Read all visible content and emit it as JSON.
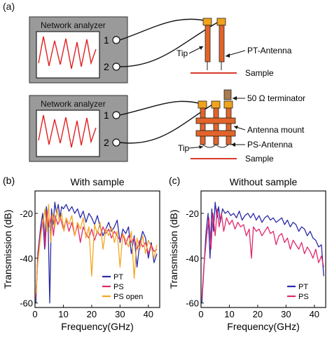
{
  "panel_a": {
    "label": "(a)",
    "analyzer_title": "Network analyzer",
    "port1": "1",
    "port2": "2",
    "top": {
      "tip": "Tip",
      "antenna": "PT-Antenna",
      "sample": "Sample"
    },
    "bottom": {
      "terminator": "50 Ω terminator",
      "mount": "Antenna mount",
      "antenna": "PS-Antenna",
      "tip": "Tip",
      "sample": "Sample"
    },
    "colors": {
      "box": "#9a9a9a",
      "trace": "#e02020",
      "antenna": "#e2642a",
      "tip_pad": "#f0a31c",
      "sample": "#d83a2a",
      "terminator": "#a97b4d"
    }
  },
  "chart_data": [
    {
      "type": "line",
      "panel_label": "(b)",
      "title": "With sample",
      "xlabel": "Frequency(GHz)",
      "ylabel": "Transmission (dB)",
      "xlim": [
        0,
        44
      ],
      "ylim": [
        -62,
        -10
      ],
      "xticks": [
        0,
        10,
        20,
        30,
        40
      ],
      "yticks": [
        -20,
        -40,
        -60
      ],
      "legend_position": "bottom-right",
      "series": [
        {
          "name": "PT",
          "color": "#2a2aa8",
          "x": [
            0.3,
            1,
            2,
            2.7,
            3.4,
            4,
            4.6,
            5.2,
            5.8,
            6.4,
            7,
            7.6,
            8.2,
            8.8,
            9.4,
            10,
            11,
            12,
            13,
            14,
            15,
            16,
            17,
            18,
            19,
            20,
            21,
            22,
            23,
            24,
            25,
            26,
            27,
            28,
            29,
            30,
            31,
            32,
            33,
            34,
            35,
            36,
            37,
            38,
            39,
            40,
            41,
            42,
            43
          ],
          "y": [
            -60,
            -38,
            -26,
            -20,
            -36,
            -17,
            -23,
            -60,
            -18,
            -25,
            -15,
            -20,
            -16,
            -22,
            -17,
            -18,
            -16,
            -19,
            -17,
            -20,
            -18,
            -22,
            -19,
            -24,
            -20,
            -22,
            -25,
            -21,
            -26,
            -30,
            -27,
            -24,
            -28,
            -26,
            -23,
            -33,
            -27,
            -29,
            -26,
            -38,
            -30,
            -44,
            -33,
            -28,
            -31,
            -40,
            -33,
            -42,
            -38
          ]
        },
        {
          "name": "PS",
          "color": "#e0286e",
          "x": [
            0.3,
            1,
            2,
            3,
            3.6,
            4.2,
            5,
            5.8,
            6.5,
            7.2,
            8,
            9,
            10,
            11,
            12,
            13,
            14,
            15,
            16,
            17,
            18,
            19,
            20,
            21,
            22,
            23,
            24,
            25,
            26,
            27,
            28,
            29,
            30,
            31,
            32,
            33,
            34,
            35,
            36,
            37,
            38,
            39,
            40,
            41,
            42,
            43
          ],
          "y": [
            -58,
            -40,
            -28,
            -22,
            -35,
            -19,
            -26,
            -21,
            -30,
            -21,
            -25,
            -22,
            -27,
            -23,
            -28,
            -24,
            -30,
            -25,
            -33,
            -26,
            -29,
            -31,
            -27,
            -32,
            -28,
            -30,
            -26,
            -29,
            -27,
            -31,
            -28,
            -30,
            -32,
            -29,
            -34,
            -30,
            -33,
            -31,
            -36,
            -32,
            -35,
            -33,
            -38,
            -34,
            -37,
            -36
          ]
        },
        {
          "name": "PS open",
          "color": "#f5a623",
          "x": [
            0.3,
            1,
            2,
            2.8,
            3.5,
            4.1,
            4.8,
            5.5,
            6.2,
            7,
            7.8,
            8.6,
            9.4,
            10.2,
            11,
            12,
            13,
            14,
            15,
            16,
            17,
            18,
            19,
            20,
            21,
            22,
            23,
            24,
            25,
            26,
            27,
            28,
            29,
            30,
            31,
            32,
            33,
            34,
            35,
            36,
            37,
            38,
            39,
            40,
            41,
            42,
            43
          ],
          "y": [
            -56,
            -42,
            -30,
            -24,
            -18,
            -28,
            -16,
            -33,
            -20,
            -26,
            -18,
            -24,
            -20,
            -28,
            -22,
            -25,
            -21,
            -30,
            -24,
            -27,
            -22,
            -31,
            -26,
            -48,
            -25,
            -29,
            -24,
            -36,
            -27,
            -30,
            -26,
            -33,
            -28,
            -44,
            -29,
            -32,
            -35,
            -28,
            -49,
            -31,
            -36,
            -30,
            -38,
            -32,
            -35,
            -40,
            -34
          ]
        }
      ]
    },
    {
      "type": "line",
      "panel_label": "(c)",
      "title": "Without sample",
      "xlabel": "Frequency(GHz)",
      "ylabel": "Transmission (dB)",
      "xlim": [
        0,
        44
      ],
      "ylim": [
        -62,
        -10
      ],
      "xticks": [
        0,
        10,
        20,
        30,
        40
      ],
      "yticks": [
        -20,
        -40,
        -60
      ],
      "legend_position": "bottom-right",
      "series": [
        {
          "name": "PT",
          "color": "#2a2aa8",
          "x": [
            0.3,
            1,
            1.8,
            2.5,
            3.2,
            3.8,
            4.4,
            5,
            5.6,
            6.2,
            6.8,
            7.6,
            8.5,
            9.5,
            10.5,
            11.5,
            12.5,
            13.5,
            14.5,
            15.5,
            16.5,
            17.5,
            18.5,
            19.5,
            20.5,
            21.5,
            22.5,
            23.5,
            24.5,
            25.5,
            26.5,
            27.5,
            28.5,
            29.5,
            30.5,
            31.5,
            32.5,
            33.5,
            34.5,
            35.5,
            36.5,
            37.5,
            38.5,
            39.5,
            40.5,
            41.5,
            42.5,
            43.3
          ],
          "y": [
            -60,
            -45,
            -28,
            -20,
            -40,
            -18,
            -28,
            -15,
            -22,
            -17,
            -24,
            -18,
            -20,
            -19,
            -21,
            -20,
            -22,
            -19,
            -23,
            -21,
            -20,
            -22,
            -20,
            -23,
            -21,
            -24,
            -22,
            -21,
            -23,
            -22,
            -24,
            -23,
            -22,
            -25,
            -23,
            -26,
            -24,
            -25,
            -28,
            -26,
            -27,
            -30,
            -28,
            -31,
            -32,
            -35,
            -34,
            -48
          ]
        },
        {
          "name": "PS",
          "color": "#e0286e",
          "x": [
            0.3,
            1,
            2,
            2.8,
            3.5,
            4.2,
            5,
            5.7,
            6.4,
            7.2,
            8,
            9,
            10,
            11,
            12,
            13,
            14,
            15,
            16,
            17,
            17.8,
            18.5,
            19.5,
            20.5,
            21.5,
            22.5,
            23.5,
            24.5,
            25.5,
            26.5,
            27.5,
            28.5,
            29.5,
            30.5,
            31.5,
            32.5,
            33.5,
            34.5,
            35.5,
            36.5,
            37.5,
            38.5,
            39.5,
            40.5,
            41.5,
            42.5,
            43.3
          ],
          "y": [
            -58,
            -44,
            -30,
            -22,
            -36,
            -20,
            -30,
            -18,
            -26,
            -20,
            -28,
            -22,
            -25,
            -23,
            -27,
            -24,
            -26,
            -25,
            -30,
            -27,
            -40,
            -26,
            -28,
            -27,
            -30,
            -28,
            -26,
            -29,
            -28,
            -34,
            -30,
            -29,
            -33,
            -31,
            -36,
            -32,
            -34,
            -36,
            -33,
            -38,
            -35,
            -37,
            -40,
            -36,
            -42,
            -39,
            -44
          ]
        }
      ]
    }
  ]
}
